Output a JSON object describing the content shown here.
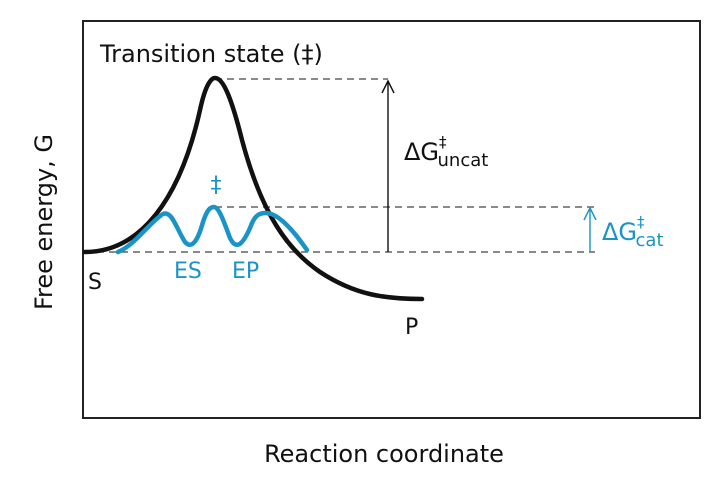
{
  "title": "Transition state (‡)",
  "x_axis_label": "Reaction coordinate",
  "y_axis_label": "Free energy, G",
  "labels": {
    "substrate": "S",
    "product": "P",
    "enzyme_substrate": "ES",
    "enzyme_product": "EP",
    "catalyzed_transition": "‡"
  },
  "delta_uncat": {
    "symbol": "ΔG",
    "sup": "‡",
    "sub": "uncat"
  },
  "delta_cat": {
    "symbol": "ΔG",
    "sup": "‡",
    "sub": "cat"
  },
  "colors": {
    "uncatalyzed_curve": "#111111",
    "catalyzed_curve": "#1a93c6",
    "frame": "#222222",
    "dashes": "#444444"
  }
}
